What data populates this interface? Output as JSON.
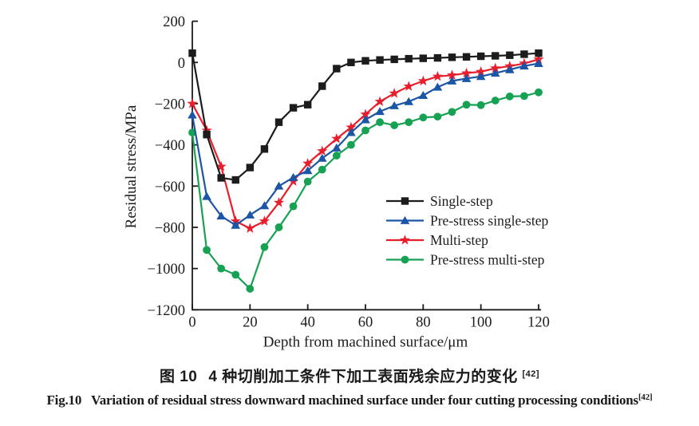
{
  "figure": {
    "caption_zh_prefix": "图 10",
    "caption_zh_text": "4 种切削加工条件下加工表面残余应力的变化",
    "caption_zh_sup": "[42]",
    "caption_en_prefix": "Fig.10",
    "caption_en_text": "Variation of residual stress downward machined surface under four cutting processing conditions",
    "caption_en_sup": "[42]"
  },
  "chart_data": {
    "type": "line",
    "title": "",
    "xlabel": "Depth from machined surface/μm",
    "ylabel": "Residual stress/MPa",
    "xlim": [
      0,
      120
    ],
    "ylim": [
      -1200,
      200
    ],
    "xticks": [
      0,
      20,
      40,
      60,
      80,
      100,
      120
    ],
    "yticks": [
      200,
      0,
      -200,
      -400,
      -600,
      -800,
      -1000,
      -1200
    ],
    "grid": false,
    "legend_position": "inside-right",
    "x": [
      0,
      5,
      10,
      15,
      20,
      25,
      30,
      35,
      40,
      45,
      50,
      55,
      60,
      65,
      70,
      75,
      80,
      85,
      90,
      95,
      100,
      105,
      110,
      115,
      120
    ],
    "series": [
      {
        "name": "Single-step",
        "color": "#1c1c1c",
        "marker": "square",
        "values": [
          45,
          -350,
          -560,
          -570,
          -510,
          -420,
          -290,
          -220,
          -205,
          -115,
          -30,
          0,
          8,
          12,
          15,
          18,
          20,
          22,
          25,
          27,
          30,
          32,
          35,
          40,
          45
        ]
      },
      {
        "name": "Pre-stress single-step",
        "color": "#1b55a5",
        "marker": "triangle",
        "values": [
          -255,
          -650,
          -745,
          -790,
          -740,
          -695,
          -600,
          -558,
          -525,
          -465,
          -415,
          -340,
          -278,
          -238,
          -210,
          -190,
          -160,
          -120,
          -90,
          -78,
          -68,
          -52,
          -35,
          -17,
          -5
        ]
      },
      {
        "name": "Multi-step",
        "color": "#e81e2c",
        "marker": "star",
        "values": [
          -200,
          -330,
          -505,
          -770,
          -805,
          -770,
          -680,
          -577,
          -490,
          -430,
          -370,
          -315,
          -252,
          -190,
          -150,
          -116,
          -90,
          -68,
          -62,
          -52,
          -45,
          -28,
          -18,
          -5,
          15
        ]
      },
      {
        "name": "Pre-stress multi-step",
        "color": "#17a253",
        "marker": "circle",
        "values": [
          -340,
          -910,
          -1000,
          -1030,
          -1098,
          -896,
          -800,
          -698,
          -578,
          -520,
          -452,
          -400,
          -330,
          -290,
          -305,
          -290,
          -267,
          -263,
          -240,
          -205,
          -207,
          -185,
          -165,
          -163,
          -145
        ]
      }
    ]
  }
}
